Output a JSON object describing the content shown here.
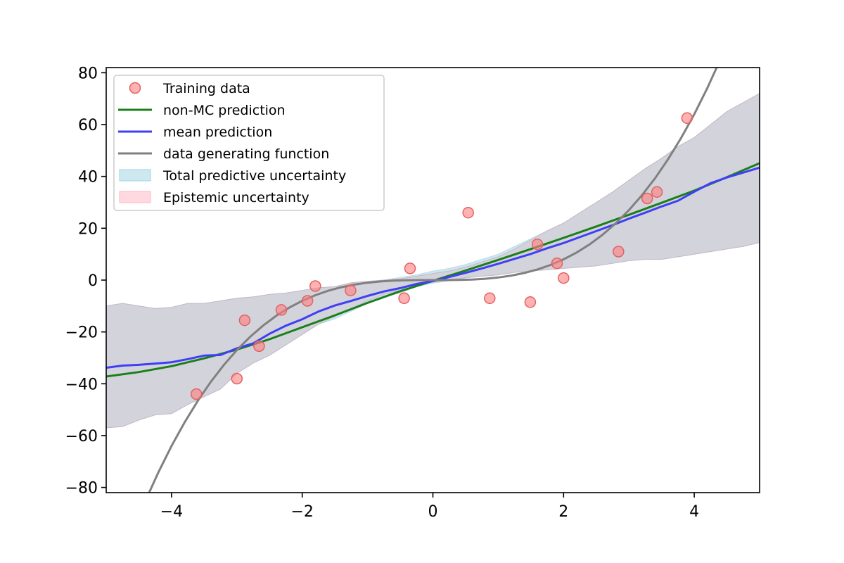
{
  "chart_data": {
    "type": "line",
    "title": "",
    "xlabel": "",
    "ylabel": "",
    "xlim": [
      -5,
      5
    ],
    "ylim": [
      -82,
      82
    ],
    "xticks": [
      -4,
      -2,
      0,
      2,
      4
    ],
    "yticks": [
      -80,
      -60,
      -40,
      -20,
      0,
      20,
      40,
      60,
      80
    ],
    "legend_position": "top-left",
    "colors": {
      "training": "#ff7f7f",
      "training_edge": "#e26262",
      "non_mc": "#1a7f1a",
      "mean": "#3f3ff5",
      "gen": "#808080",
      "total_fill": "#add8e6",
      "epi_fill": "#ffc0cb",
      "overlap": "#d3cfd8"
    },
    "series": [
      {
        "name": "Training data",
        "kind": "scatter",
        "x": [
          -3.62,
          -3.0,
          -2.88,
          -2.66,
          -2.32,
          -1.92,
          -1.8,
          -1.26,
          -0.44,
          -0.35,
          0.54,
          0.87,
          1.49,
          1.6,
          1.9,
          2.0,
          2.84,
          3.28,
          3.43,
          3.89
        ],
        "y": [
          -44,
          -38,
          -15.5,
          -25.5,
          -11.5,
          -8,
          -2.3,
          -4,
          -7,
          4.5,
          26,
          -7,
          -8.5,
          13.8,
          6.5,
          0.8,
          11,
          31.5,
          34,
          62.5
        ]
      },
      {
        "name": "non-MC prediction",
        "kind": "line",
        "x": [
          -5,
          -4.5,
          -4,
          -3.5,
          -3,
          -2.5,
          -2,
          -1.5,
          -1,
          -0.5,
          0,
          0.5,
          1,
          1.5,
          2,
          2.5,
          3,
          3.5,
          4,
          4.5,
          5
        ],
        "y": [
          -37.2,
          -35.5,
          -33.2,
          -30.2,
          -26.8,
          -22.8,
          -18.2,
          -13.6,
          -8.8,
          -4.3,
          -0.3,
          3.7,
          7.8,
          12.0,
          16.3,
          20.7,
          25.2,
          29.8,
          34.5,
          39.7,
          45.1
        ]
      },
      {
        "name": "mean prediction",
        "kind": "line",
        "x": [
          -5,
          -4.75,
          -4.5,
          -4.25,
          -4,
          -3.75,
          -3.5,
          -3.25,
          -3,
          -2.75,
          -2.5,
          -2.25,
          -2,
          -1.75,
          -1.5,
          -1.25,
          -1,
          -0.75,
          -0.5,
          -0.25,
          0,
          0.25,
          0.5,
          0.75,
          1,
          1.25,
          1.5,
          1.75,
          2,
          2.25,
          2.5,
          2.75,
          3,
          3.25,
          3.5,
          3.75,
          4,
          4.25,
          4.5,
          4.75,
          5
        ],
        "y": [
          -33.8,
          -33.0,
          -32.7,
          -32.2,
          -31.7,
          -30.5,
          -29.1,
          -28.9,
          -26.3,
          -24.4,
          -20.7,
          -17.6,
          -15.1,
          -12.1,
          -9.8,
          -8.0,
          -6.1,
          -4.4,
          -3.1,
          -1.5,
          -0.4,
          1.2,
          2.8,
          4.5,
          6.3,
          8.2,
          10.1,
          12.3,
          14.3,
          16.6,
          18.9,
          21.2,
          23.7,
          26.0,
          28.4,
          30.6,
          34.1,
          37.4,
          39.6,
          41.5,
          43.4
        ]
      },
      {
        "name": "data generating function",
        "kind": "line",
        "formula": "y = x^3",
        "x": [
          -4.4,
          -4.2,
          -4.0,
          -3.8,
          -3.6,
          -3.4,
          -3.2,
          -3.0,
          -2.8,
          -2.6,
          -2.4,
          -2.2,
          -2.0,
          -1.8,
          -1.6,
          -1.4,
          -1.2,
          -1.0,
          -0.8,
          -0.6,
          -0.4,
          -0.2,
          0.0,
          0.2,
          0.4,
          0.6,
          0.8,
          1.0,
          1.2,
          1.4,
          1.6,
          1.8,
          2.0,
          2.2,
          2.4,
          2.6,
          2.8,
          3.0,
          3.2,
          3.4,
          3.6,
          3.8,
          4.0,
          4.2,
          4.4
        ],
        "y": [
          -85.18,
          -74.09,
          -64.0,
          -54.87,
          -46.66,
          -39.3,
          -32.77,
          -27.0,
          -21.95,
          -17.58,
          -13.82,
          -10.65,
          -8.0,
          -5.83,
          -4.1,
          -2.74,
          -1.73,
          -1.0,
          -0.51,
          -0.22,
          -0.06,
          -0.01,
          0.0,
          0.01,
          0.06,
          0.22,
          0.51,
          1.0,
          1.73,
          2.74,
          4.1,
          5.83,
          8.0,
          10.65,
          13.82,
          17.58,
          21.95,
          27.0,
          32.77,
          39.3,
          46.66,
          54.87,
          64.0,
          74.09,
          85.18
        ]
      },
      {
        "name": "Total predictive uncertainty",
        "kind": "band",
        "x": [
          -5,
          -4.75,
          -4.5,
          -4.25,
          -4,
          -3.75,
          -3.5,
          -3.25,
          -3,
          -2.75,
          -2.5,
          -2.25,
          -2,
          -1.75,
          -1.5,
          -1.25,
          -1,
          -0.75,
          -0.5,
          -0.25,
          0,
          0.25,
          0.5,
          0.75,
          1,
          1.25,
          1.5,
          1.75,
          2,
          2.25,
          2.5,
          2.75,
          3,
          3.25,
          3.5,
          3.75,
          4,
          4.25,
          4.5,
          4.75,
          5
        ],
        "lower": [
          -57.0,
          -56.5,
          -54.0,
          -52.0,
          -51.5,
          -48.0,
          -45.0,
          -42.0,
          -36.0,
          -32.0,
          -29.0,
          -25.0,
          -21.0,
          -17.0,
          -15.0,
          -12.0,
          -9.0,
          -6.5,
          -5.0,
          -2.5,
          -1.2,
          -0.3,
          0.8,
          1.5,
          2.0,
          3.0,
          3.5,
          4.0,
          4.5,
          5.0,
          5.5,
          6.5,
          7.5,
          8.0,
          8.0,
          9.0,
          10.0,
          11.0,
          12.0,
          13.0,
          14.5
        ],
        "upper": [
          -10.0,
          -9.0,
          -10.0,
          -11.0,
          -10.5,
          -9.0,
          -9.0,
          -8.0,
          -7.0,
          -6.5,
          -5.5,
          -5.0,
          -4.0,
          -3.0,
          -2.5,
          -1.0,
          -0.5,
          0.0,
          1.0,
          2.0,
          3.5,
          4.5,
          6.0,
          8.0,
          10.0,
          13.0,
          16.0,
          19.0,
          22.0,
          26.0,
          30.0,
          34.0,
          38.5,
          43.0,
          47.0,
          51.5,
          55.0,
          60.0,
          65.0,
          68.5,
          72.0
        ]
      },
      {
        "name": "Epistemic uncertainty",
        "kind": "band",
        "x": [
          -5,
          -4.75,
          -4.5,
          -4.25,
          -4,
          -3.75,
          -3.5,
          -3.25,
          -3,
          -2.75,
          -2.5,
          -2.25,
          -2,
          -1.75,
          -1.5,
          -1.25,
          -1,
          -0.75,
          -0.5,
          -0.25,
          0,
          0.25,
          0.5,
          0.75,
          1,
          1.25,
          1.5,
          1.75,
          2,
          2.25,
          2.5,
          2.75,
          3,
          3.25,
          3.5,
          3.75,
          4,
          4.25,
          4.5,
          4.75,
          5
        ],
        "lower": [
          -57.0,
          -56.5,
          -54.0,
          -52.0,
          -51.5,
          -48.0,
          -45.0,
          -42.0,
          -36.0,
          -32.0,
          -29.0,
          -25.0,
          -21.0,
          -17.0,
          -14.0,
          -11.0,
          -8.0,
          -5.5,
          -4.0,
          -2.0,
          -0.8,
          0.0,
          1.0,
          1.5,
          2.0,
          3.0,
          3.5,
          4.0,
          4.5,
          5.0,
          5.5,
          6.5,
          7.5,
          8.0,
          8.0,
          9.0,
          10.0,
          11.0,
          12.0,
          13.0,
          14.5
        ],
        "upper": [
          -10.0,
          -9.0,
          -10.0,
          -11.0,
          -10.5,
          -9.0,
          -9.0,
          -8.0,
          -7.0,
          -6.5,
          -5.5,
          -5.0,
          -4.0,
          -3.0,
          -2.5,
          -1.0,
          -0.5,
          0.0,
          0.5,
          1.5,
          2.5,
          3.5,
          5.0,
          7.0,
          9.0,
          12.0,
          15.5,
          19.0,
          22.0,
          26.0,
          30.0,
          34.0,
          38.5,
          43.0,
          47.0,
          51.5,
          55.0,
          60.0,
          65.0,
          68.5,
          72.0
        ]
      }
    ]
  }
}
